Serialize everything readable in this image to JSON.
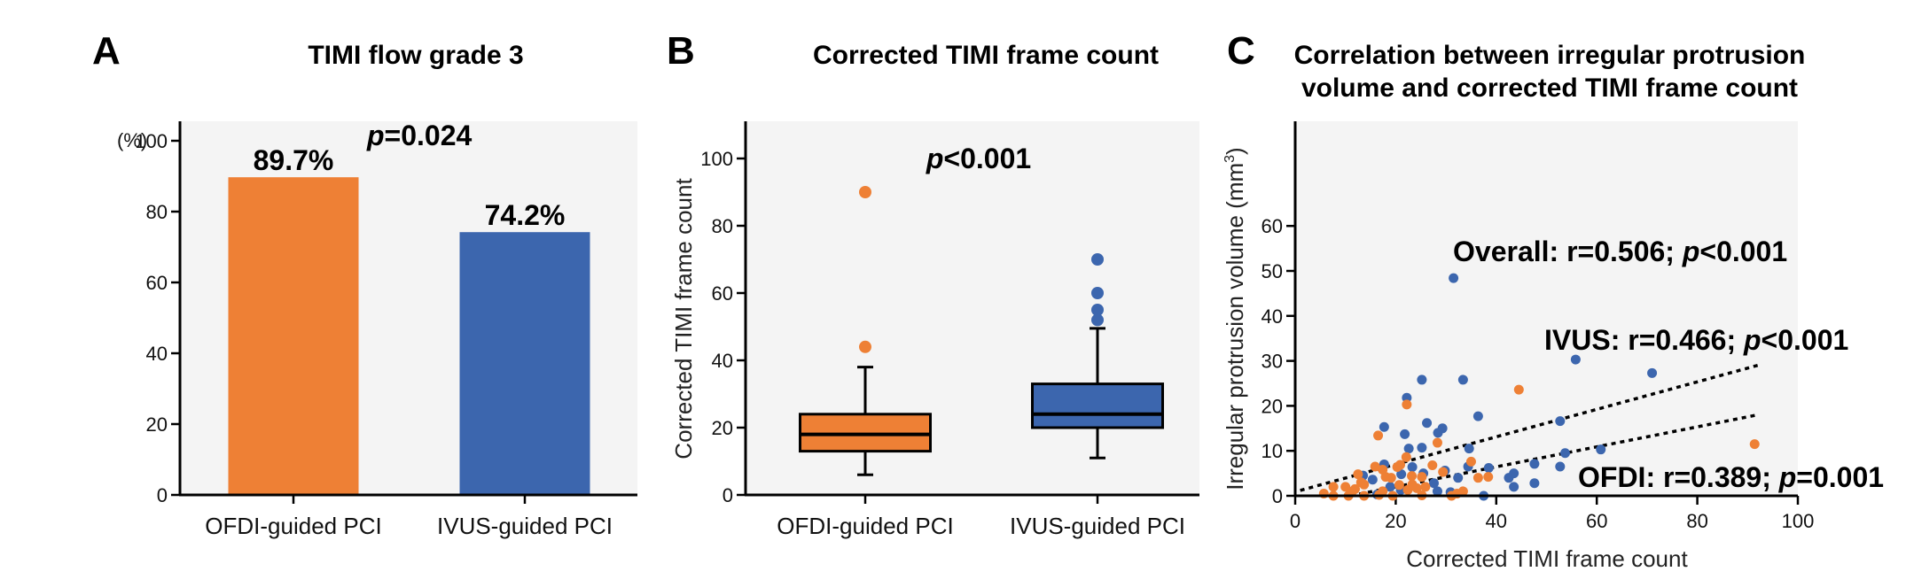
{
  "colors": {
    "ofdi": "#ee8035",
    "ivus": "#3c66ae",
    "panel_bg": "#f4f4f4",
    "axis": "#000000"
  },
  "chart_data": [
    {
      "panel": "A",
      "type": "bar",
      "title": "TIMI flow grade 3",
      "categories": [
        "OFDI-guided PCI",
        "IVUS-guided PCI"
      ],
      "values": [
        89.7,
        74.2
      ],
      "value_labels": [
        "89.7%",
        "74.2%"
      ],
      "ylabel": "(%)",
      "ylim": [
        0,
        105
      ],
      "yticks": [
        0,
        20,
        40,
        60,
        80,
        100
      ],
      "annotation": {
        "p_symbol": "p",
        "p_text": "=0.024"
      },
      "grid": false
    },
    {
      "panel": "B",
      "type": "box",
      "title": "Corrected TIMI frame count",
      "categories": [
        "OFDI-guided PCI",
        "IVUS-guided PCI"
      ],
      "ylabel": "Corrected TIMI frame count",
      "ylim": [
        0,
        110
      ],
      "yticks": [
        0,
        20,
        40,
        60,
        80,
        100
      ],
      "boxes": [
        {
          "name": "OFDI-guided PCI",
          "whisker_low": 6,
          "q1": 13,
          "median": 18,
          "q3": 24,
          "whisker_high": 38,
          "outliers": [
            44,
            90
          ]
        },
        {
          "name": "IVUS-guided PCI",
          "whisker_low": 11,
          "q1": 20,
          "median": 24,
          "q3": 33,
          "whisker_high": 49.5,
          "outliers": [
            52,
            55,
            60,
            70
          ]
        }
      ],
      "annotation": {
        "p_symbol": "p",
        "p_text": "<0.001"
      },
      "grid": false
    },
    {
      "panel": "C",
      "type": "scatter",
      "title_lines": [
        "Correlation between irregular protrusion",
        "volume and corrected TIMI frame count"
      ],
      "xlabel": "Corrected TIMI frame count",
      "ylabel": "Irregular protrusion volume (mm",
      "ylabel_sup": "3",
      "ylabel_end": ")",
      "xlim": [
        0,
        100
      ],
      "ylim": [
        0,
        75
      ],
      "xticks": [
        0,
        20,
        40,
        60,
        80,
        100
      ],
      "yticks": [
        0,
        10,
        20,
        30,
        40,
        50,
        60
      ],
      "grid": false,
      "series": [
        {
          "name": "IVUS",
          "points": [
            [
              31.5,
              48.4
            ],
            [
              55.8,
              30.3
            ],
            [
              71,
              27.3
            ],
            [
              25.2,
              25.8
            ],
            [
              33.4,
              25.8
            ],
            [
              22.2,
              21.8
            ],
            [
              36.4,
              17.7
            ],
            [
              52.7,
              16.6
            ],
            [
              26.2,
              16.2
            ],
            [
              29.3,
              15
            ],
            [
              17.7,
              15.3
            ],
            [
              28.4,
              14
            ],
            [
              21.8,
              13.7
            ],
            [
              22.6,
              10.5
            ],
            [
              25.2,
              10.7
            ],
            [
              34.6,
              10.5
            ],
            [
              60.8,
              10.3
            ],
            [
              53.7,
              9.5
            ],
            [
              47.6,
              7.1
            ],
            [
              52.7,
              6.5
            ],
            [
              38.5,
              6.2
            ],
            [
              34.4,
              6.5
            ],
            [
              43.5,
              5
            ],
            [
              42.5,
              4
            ],
            [
              43.5,
              2
            ],
            [
              47.6,
              2.8
            ],
            [
              32.4,
              4
            ],
            [
              37.5,
              0
            ],
            [
              30.9,
              0.8
            ],
            [
              28.3,
              1
            ],
            [
              27.6,
              2.8
            ],
            [
              29.8,
              5.6
            ],
            [
              23.3,
              6.4
            ],
            [
              25.5,
              5
            ],
            [
              21.1,
              4.8
            ],
            [
              17.7,
              7
            ],
            [
              15.4,
              3.6
            ],
            [
              13.5,
              4.5
            ],
            [
              21,
              1.3
            ],
            [
              18.9,
              2
            ],
            [
              16.3,
              0.3
            ]
          ],
          "fit_line": [
            [
              1,
              1.2
            ],
            [
              92,
              29
            ]
          ]
        },
        {
          "name": "OFDI",
          "points": [
            [
              91.4,
              11.5
            ],
            [
              44.5,
              23.6
            ],
            [
              22.2,
              20.3
            ],
            [
              16.5,
              13.4
            ],
            [
              28.3,
              11.8
            ],
            [
              22.1,
              8.6
            ],
            [
              35,
              7.6
            ],
            [
              27.3,
              6.8
            ],
            [
              15.9,
              6.5
            ],
            [
              20.3,
              6.4
            ],
            [
              20.9,
              6.9
            ],
            [
              17.4,
              5.8
            ],
            [
              29.4,
              5.3
            ],
            [
              36.4,
              4
            ],
            [
              38.4,
              4.2
            ],
            [
              23.2,
              4.4
            ],
            [
              25.2,
              4.2
            ],
            [
              12.5,
              4.8
            ],
            [
              19.1,
              4
            ],
            [
              18,
              4.2
            ],
            [
              13.1,
              3
            ],
            [
              20.7,
              2.4
            ],
            [
              24.2,
              1.7
            ],
            [
              25.9,
              2
            ],
            [
              10,
              2
            ],
            [
              7.6,
              2
            ],
            [
              5.7,
              0.5
            ],
            [
              7.6,
              0
            ],
            [
              10.6,
              0
            ],
            [
              13.7,
              0
            ],
            [
              16.7,
              0.2
            ],
            [
              19.4,
              0
            ],
            [
              25.2,
              0.1
            ],
            [
              31.1,
              0
            ],
            [
              33.4,
              1
            ],
            [
              32.2,
              0.5
            ],
            [
              11.9,
              1.5
            ],
            [
              13.7,
              2.5
            ],
            [
              11.3,
              0.9
            ],
            [
              22.4,
              1.3
            ],
            [
              23.3,
              2.5
            ],
            [
              17.4,
              1
            ]
          ],
          "fit_line": [
            [
              11,
              0
            ],
            [
              92,
              18
            ]
          ]
        }
      ],
      "annotations": [
        {
          "prefix": "Overall: r=0.506; ",
          "p_symbol": "p",
          "p_text": "<0.001"
        },
        {
          "prefix": "IVUS: r=0.466; ",
          "p_symbol": "p",
          "p_text": "<0.001"
        },
        {
          "prefix": "OFDI: r=0.389; ",
          "p_symbol": "p",
          "p_text": "=0.001"
        }
      ]
    }
  ]
}
